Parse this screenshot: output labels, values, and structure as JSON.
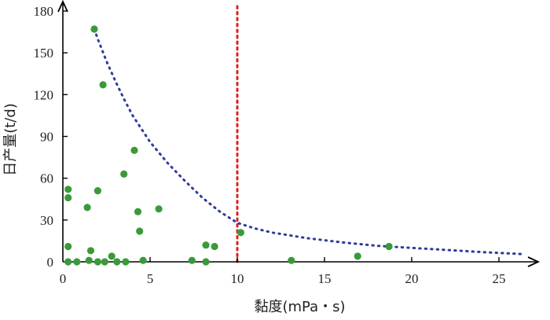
{
  "chart_data": {
    "type": "scatter",
    "xlabel": "黏度(mPa・s)",
    "ylabel": "日产量(t/d)",
    "xlim": [
      0,
      27
    ],
    "ylim": [
      0,
      180
    ],
    "xticks": [
      0,
      5,
      10,
      15,
      20,
      25
    ],
    "yticks": [
      0,
      30,
      60,
      90,
      120,
      150,
      180
    ],
    "grid": false,
    "colors": {
      "points": "#3a9a3a",
      "trend": "#2f3c9c",
      "reference": "#e0201e",
      "axis": "#000000"
    },
    "points": [
      {
        "x": 1.8,
        "y": 167
      },
      {
        "x": 2.3,
        "y": 127
      },
      {
        "x": 4.1,
        "y": 80
      },
      {
        "x": 3.5,
        "y": 63
      },
      {
        "x": 0.3,
        "y": 52
      },
      {
        "x": 2.0,
        "y": 51
      },
      {
        "x": 0.3,
        "y": 46
      },
      {
        "x": 1.4,
        "y": 39
      },
      {
        "x": 5.5,
        "y": 38
      },
      {
        "x": 4.3,
        "y": 36
      },
      {
        "x": 4.4,
        "y": 22
      },
      {
        "x": 10.2,
        "y": 21
      },
      {
        "x": 8.2,
        "y": 12
      },
      {
        "x": 8.7,
        "y": 11
      },
      {
        "x": 18.7,
        "y": 11
      },
      {
        "x": 0.3,
        "y": 11
      },
      {
        "x": 1.6,
        "y": 8
      },
      {
        "x": 2.8,
        "y": 4
      },
      {
        "x": 16.9,
        "y": 4
      },
      {
        "x": 7.4,
        "y": 1
      },
      {
        "x": 13.1,
        "y": 1
      },
      {
        "x": 0.3,
        "y": 0
      },
      {
        "x": 0.8,
        "y": 0
      },
      {
        "x": 1.5,
        "y": 1
      },
      {
        "x": 2.0,
        "y": 0
      },
      {
        "x": 2.4,
        "y": 0
      },
      {
        "x": 3.1,
        "y": 0
      },
      {
        "x": 3.6,
        "y": 0
      },
      {
        "x": 4.6,
        "y": 1
      },
      {
        "x": 8.2,
        "y": 0
      }
    ],
    "trend_curve": {
      "style": "dotted",
      "points": [
        [
          1.8,
          167
        ],
        [
          2,
          160
        ],
        [
          2.5,
          144
        ],
        [
          3,
          130
        ],
        [
          3.5,
          117
        ],
        [
          4,
          105
        ],
        [
          5,
          86
        ],
        [
          6,
          71
        ],
        [
          7,
          58
        ],
        [
          8,
          46
        ],
        [
          9,
          36
        ],
        [
          10,
          28
        ],
        [
          11,
          24
        ],
        [
          12,
          21
        ],
        [
          14,
          17
        ],
        [
          16,
          14
        ],
        [
          18,
          11.5
        ],
        [
          20,
          10
        ],
        [
          22,
          8.5
        ],
        [
          24,
          7
        ],
        [
          26.5,
          5.5
        ]
      ]
    },
    "reference_line": {
      "x": 10,
      "style": "dotted"
    }
  }
}
